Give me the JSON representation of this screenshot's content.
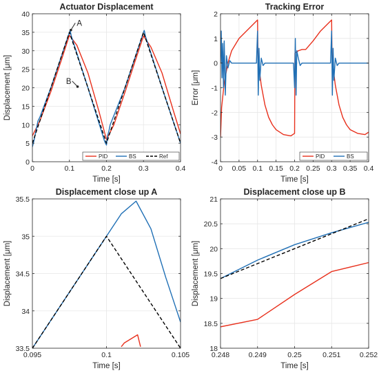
{
  "chart_data": [
    {
      "id": "p1",
      "type": "line",
      "title": "Actuator Displacement",
      "xlabel": "Time [s]",
      "ylabel": "Displacement [μm]",
      "xlim": [
        0,
        0.4
      ],
      "ylim": [
        0,
        40
      ],
      "xticks": [
        0,
        0.1,
        0.2,
        0.3,
        0.4
      ],
      "yticks": [
        0,
        5,
        10,
        15,
        20,
        25,
        30,
        35,
        40
      ],
      "grid": true,
      "legend": "bottom-right",
      "series": [
        {
          "name": "PID",
          "color": "#e8301c",
          "style": "solid",
          "x": [
            0,
            0.02,
            0.05,
            0.08,
            0.1,
            0.12,
            0.15,
            0.18,
            0.2,
            0.22,
            0.25,
            0.28,
            0.3,
            0.32,
            0.35,
            0.38,
            0.4
          ],
          "y": [
            7,
            11,
            19,
            28,
            34.2,
            31.5,
            24,
            13.5,
            6,
            10,
            18.8,
            28,
            34,
            31,
            24,
            14,
            7.5
          ]
        },
        {
          "name": "BS",
          "color": "#1f6fb5",
          "style": "solid",
          "x": [
            0,
            0.005,
            0.01,
            0.015,
            0.02,
            0.05,
            0.095,
            0.1,
            0.102,
            0.105,
            0.15,
            0.195,
            0.2,
            0.203,
            0.207,
            0.21,
            0.25,
            0.295,
            0.3,
            0.302,
            0.305,
            0.35,
            0.4
          ],
          "y": [
            4,
            6,
            8.5,
            11,
            12,
            20,
            33.5,
            35,
            35.5,
            34,
            20,
            5.5,
            4.5,
            7,
            8.5,
            10,
            20,
            33.5,
            35,
            35.5,
            34,
            20,
            5
          ]
        },
        {
          "name": "Ref",
          "color": "#000000",
          "style": "dashed",
          "x": [
            0,
            0.1,
            0.2,
            0.3,
            0.4
          ],
          "y": [
            5,
            35,
            5,
            35,
            5
          ]
        }
      ],
      "annotations": [
        {
          "text": "A",
          "x": 0.127,
          "y": 37.5,
          "tx": 0.104,
          "ty": 35.6
        },
        {
          "text": "B",
          "x": 0.098,
          "y": 21.8,
          "tx": 0.122,
          "ty": 20.3
        }
      ]
    },
    {
      "id": "p2",
      "type": "line",
      "title": "Tracking Error",
      "xlabel": "Time [s]",
      "ylabel": "Error [μm]",
      "xlim": [
        0,
        0.4
      ],
      "ylim": [
        -4,
        2
      ],
      "xticks": [
        0,
        0.05,
        0.1,
        0.15,
        0.2,
        0.25,
        0.3,
        0.35,
        0.4
      ],
      "yticks": [
        -4,
        -3,
        -2,
        -1,
        0,
        1,
        2
      ],
      "grid": true,
      "legend": "bottom-right",
      "series": [
        {
          "name": "PID",
          "color": "#e8301c",
          "style": "solid",
          "x": [
            0,
            0.003,
            0.01,
            0.02,
            0.03,
            0.05,
            0.07,
            0.09,
            0.1,
            0.101,
            0.105,
            0.11,
            0.12,
            0.13,
            0.14,
            0.15,
            0.17,
            0.19,
            0.2,
            0.201,
            0.21,
            0.22,
            0.23,
            0.25,
            0.27,
            0.29,
            0.3,
            0.301,
            0.305,
            0.31,
            0.32,
            0.33,
            0.34,
            0.35,
            0.37,
            0.39,
            0.4
          ],
          "y": [
            -3,
            -1.8,
            -0.8,
            0,
            0.5,
            1.0,
            1.3,
            1.6,
            1.75,
            0.3,
            -0.3,
            -0.9,
            -1.7,
            -2.2,
            -2.5,
            -2.7,
            -2.9,
            -2.95,
            -2.85,
            0.4,
            0.5,
            0.55,
            0.55,
            0.9,
            1.3,
            1.6,
            1.75,
            0.3,
            -0.3,
            -0.9,
            -1.7,
            -2.2,
            -2.5,
            -2.7,
            -2.85,
            -2.9,
            -2.8
          ]
        },
        {
          "name": "BS",
          "color": "#1f6fb5",
          "style": "solid",
          "x": [
            0,
            0.002,
            0.004,
            0.006,
            0.008,
            0.01,
            0.013,
            0.016,
            0.02,
            0.025,
            0.03,
            0.05,
            0.097,
            0.1,
            0.102,
            0.104,
            0.106,
            0.11,
            0.115,
            0.12,
            0.15,
            0.197,
            0.2,
            0.202,
            0.204,
            0.206,
            0.21,
            0.215,
            0.22,
            0.25,
            0.297,
            0.3,
            0.302,
            0.304,
            0.306,
            0.31,
            0.315,
            0.32,
            0.35,
            0.4
          ],
          "y": [
            0,
            1.3,
            -0.6,
            0.8,
            -1.0,
            0.9,
            -1.3,
            0.3,
            -0.2,
            0.1,
            0,
            0,
            0,
            1.3,
            -1.3,
            0.6,
            -0.7,
            0.2,
            -0.1,
            0,
            0,
            0,
            -1.0,
            1.0,
            -1.3,
            0.5,
            0.2,
            -0.1,
            0,
            0,
            0,
            1.3,
            -1.3,
            0.6,
            -0.7,
            0.2,
            -0.1,
            0,
            0,
            0
          ]
        }
      ]
    },
    {
      "id": "p3",
      "type": "line",
      "title": "Displacement close up A",
      "xlabel": "Time [s]",
      "ylabel": "Displacement [μm]",
      "xlim": [
        0.095,
        0.105
      ],
      "ylim": [
        33.5,
        35.5
      ],
      "xticks": [
        0.095,
        0.1,
        0.105
      ],
      "xticklabels": [
        "0.095",
        "0.1",
        "0.105"
      ],
      "yticks": [
        33.5,
        34,
        34.5,
        35,
        35.5
      ],
      "grid": true,
      "series": [
        {
          "name": "PID",
          "color": "#e8301c",
          "style": "solid",
          "x": [
            0.101,
            0.1012,
            0.1021,
            0.1023
          ],
          "y": [
            33.52,
            33.57,
            33.68,
            33.52
          ]
        },
        {
          "name": "BS",
          "color": "#1f6fb5",
          "style": "solid",
          "x": [
            0.095,
            0.1,
            0.101,
            0.102,
            0.103,
            0.104,
            0.105
          ],
          "y": [
            33.5,
            35.0,
            35.3,
            35.47,
            35.1,
            34.45,
            33.85
          ]
        },
        {
          "name": "Ref",
          "color": "#000000",
          "style": "dashed",
          "x": [
            0.095,
            0.1,
            0.105
          ],
          "y": [
            33.5,
            35.0,
            33.5
          ]
        }
      ]
    },
    {
      "id": "p4",
      "type": "line",
      "title": "Displacement close up B",
      "xlabel": "Time [s]",
      "ylabel": "Displacement [μm]",
      "xlim": [
        0.248,
        0.252
      ],
      "ylim": [
        18,
        21
      ],
      "xticks": [
        0.248,
        0.249,
        0.25,
        0.251,
        0.252
      ],
      "xticklabels": [
        "0.248",
        "0.249",
        "0.25",
        "0.251",
        "0.252"
      ],
      "yticks": [
        18,
        18.5,
        19,
        19.5,
        20,
        20.5,
        21
      ],
      "grid": true,
      "series": [
        {
          "name": "PID",
          "color": "#e8301c",
          "style": "solid",
          "x": [
            0.248,
            0.249,
            0.25,
            0.251,
            0.252
          ],
          "y": [
            18.43,
            18.58,
            19.08,
            19.54,
            19.72
          ]
        },
        {
          "name": "BS",
          "color": "#1f6fb5",
          "style": "solid",
          "x": [
            0.248,
            0.249,
            0.25,
            0.251,
            0.252
          ],
          "y": [
            19.4,
            19.77,
            20.08,
            20.32,
            20.53
          ]
        },
        {
          "name": "Ref",
          "color": "#000000",
          "style": "dashed",
          "x": [
            0.248,
            0.252
          ],
          "y": [
            19.4,
            20.6
          ]
        }
      ]
    }
  ]
}
